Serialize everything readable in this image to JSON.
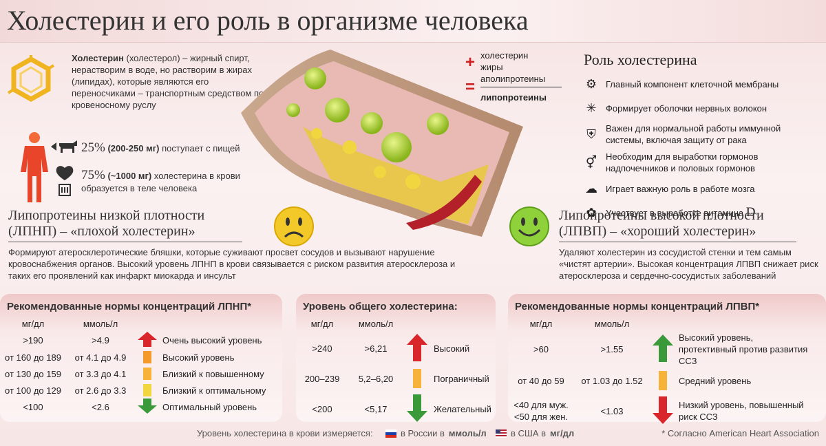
{
  "title": "Холестерин и его роль в организме человека",
  "definition": {
    "term": "Холестерин",
    "text": " (холестерол) – жирный спирт, нерастворим в воде, но растворим в жирах (липидах), которые являются его переносчиками – транспортным средством по кровеносному руслу"
  },
  "stats": [
    {
      "pct": "25%",
      "amount": "(200-250 мг)",
      "text": "поступает с пищей"
    },
    {
      "pct": "75%",
      "amount": "(~1000 мг)",
      "text": "холестерина в крови образуется в теле человека"
    }
  ],
  "formula": {
    "items": [
      "холестерин",
      "жиры",
      "аполипротеины"
    ],
    "result": "липопротеины",
    "plus": "+",
    "equals": "="
  },
  "role": {
    "title": "Роль холестерина",
    "items": [
      {
        "icon": "gears-icon",
        "text": "Главный компонент клеточной мембраны"
      },
      {
        "icon": "neuron-icon",
        "text": "Формирует оболочки нервных волокон"
      },
      {
        "icon": "shield-cross-icon",
        "text": "Важен для нормальной работы иммунной системы, включая защиту от рака"
      },
      {
        "icon": "gender-icon",
        "text": "Необходим для выработки гормонов надпочечников и половых гормонов"
      },
      {
        "icon": "brain-icon",
        "text": "Играет важную роль в работе мозга"
      },
      {
        "icon": "vitamin-d-icon",
        "text": "Участвует в выработке витамина ",
        "suffix": "D"
      }
    ]
  },
  "ldl": {
    "title_l1": "Липопротеины низкой плотности",
    "title_l2": "(ЛПНП) – «плохой холестерин»",
    "text": "Формируют атеросклеротические бляшки, которые суживают просвет сосудов и вызывают нарушение кровоснабжения органов. Высокий уровень ЛПНП в крови связывается с риском развития атеросклероза и таких его проявлений как инфаркт миокарда и инсульт"
  },
  "hdl": {
    "title_l1": "Липопротеины высокой плотности",
    "title_l2": "(ЛПВП) – «хороший холестерин»",
    "text": "Удаляют холестерин из сосудистой стенки и тем самым «чистят артерии». Высокая концентрация ЛПВП снижает риск атеросклероза и сердечно-сосудистых заболеваний"
  },
  "ldl_table": {
    "title": "Рекомендованные нормы концентраций ЛПНП*",
    "col1": "мг/дл",
    "col2": "ммоль/л",
    "rows": [
      {
        "mg": ">190",
        "mmol": ">4.9",
        "indicator": "arrow-up-red",
        "label": "Очень высокий уровень"
      },
      {
        "mg": "от 160 до 189",
        "mmol": "от 4.1 до 4.9",
        "indicator": "bar-orange",
        "label": "Высокий уровень"
      },
      {
        "mg": "от 130 до 159",
        "mmol": "от 3.3 до 4.1",
        "indicator": "bar-amber",
        "label": "Близкий к повышенному"
      },
      {
        "mg": "от 100 до 129",
        "mmol": "от 2.6 до 3.3",
        "indicator": "bar-yellow",
        "label": "Близкий к оптимальному"
      },
      {
        "mg": "<100",
        "mmol": "<2.6",
        "indicator": "arrow-down-green",
        "label": "Оптимальный уровень"
      }
    ]
  },
  "total_table": {
    "title": "Уровень общего холестерина:",
    "col1": "мг/дл",
    "col2": "ммоль/л",
    "rows": [
      {
        "mg": ">240",
        "mmol": ">6,21",
        "indicator": "arrow-up-red",
        "label": "Высокий"
      },
      {
        "mg": "200–239",
        "mmol": "5,2–6,20",
        "indicator": "bar-orange",
        "label": "Пограничный"
      },
      {
        "mg": "<200",
        "mmol": "<5,17",
        "indicator": "arrow-down-green",
        "label": "Желательный"
      }
    ]
  },
  "hdl_table": {
    "title": "Рекомендованные нормы концентраций ЛПВП*",
    "col1": "мг/дл",
    "col2": "ммоль/л",
    "rows": [
      {
        "mg": ">60",
        "mmol": ">1.55",
        "indicator": "arrow-up-green",
        "label": "Высокий уровень, протективный против развития ССЗ"
      },
      {
        "mg": "от 40 до 59",
        "mmol": "от 1.03 до 1.52",
        "indicator": "bar-orange",
        "label": "Средний уровень"
      },
      {
        "mg": "<40 для муж.\n<50 для жен.",
        "mmol": "<1.03",
        "indicator": "arrow-down-red",
        "label": "Низкий уровень, повышенный риск ССЗ"
      }
    ]
  },
  "footer": {
    "measure": "Уровень холестерина в крови измеряется:",
    "russia": "в России в",
    "russia_unit": "ммоль/л",
    "usa": "в США в",
    "usa_unit": "мг/дл",
    "source": "* Согласно American Heart Association"
  },
  "colors": {
    "red": "#d9262a",
    "green": "#3a9a3a",
    "orange": "#f39a2a",
    "amber": "#f7b23a",
    "yellow": "#f1d640"
  }
}
